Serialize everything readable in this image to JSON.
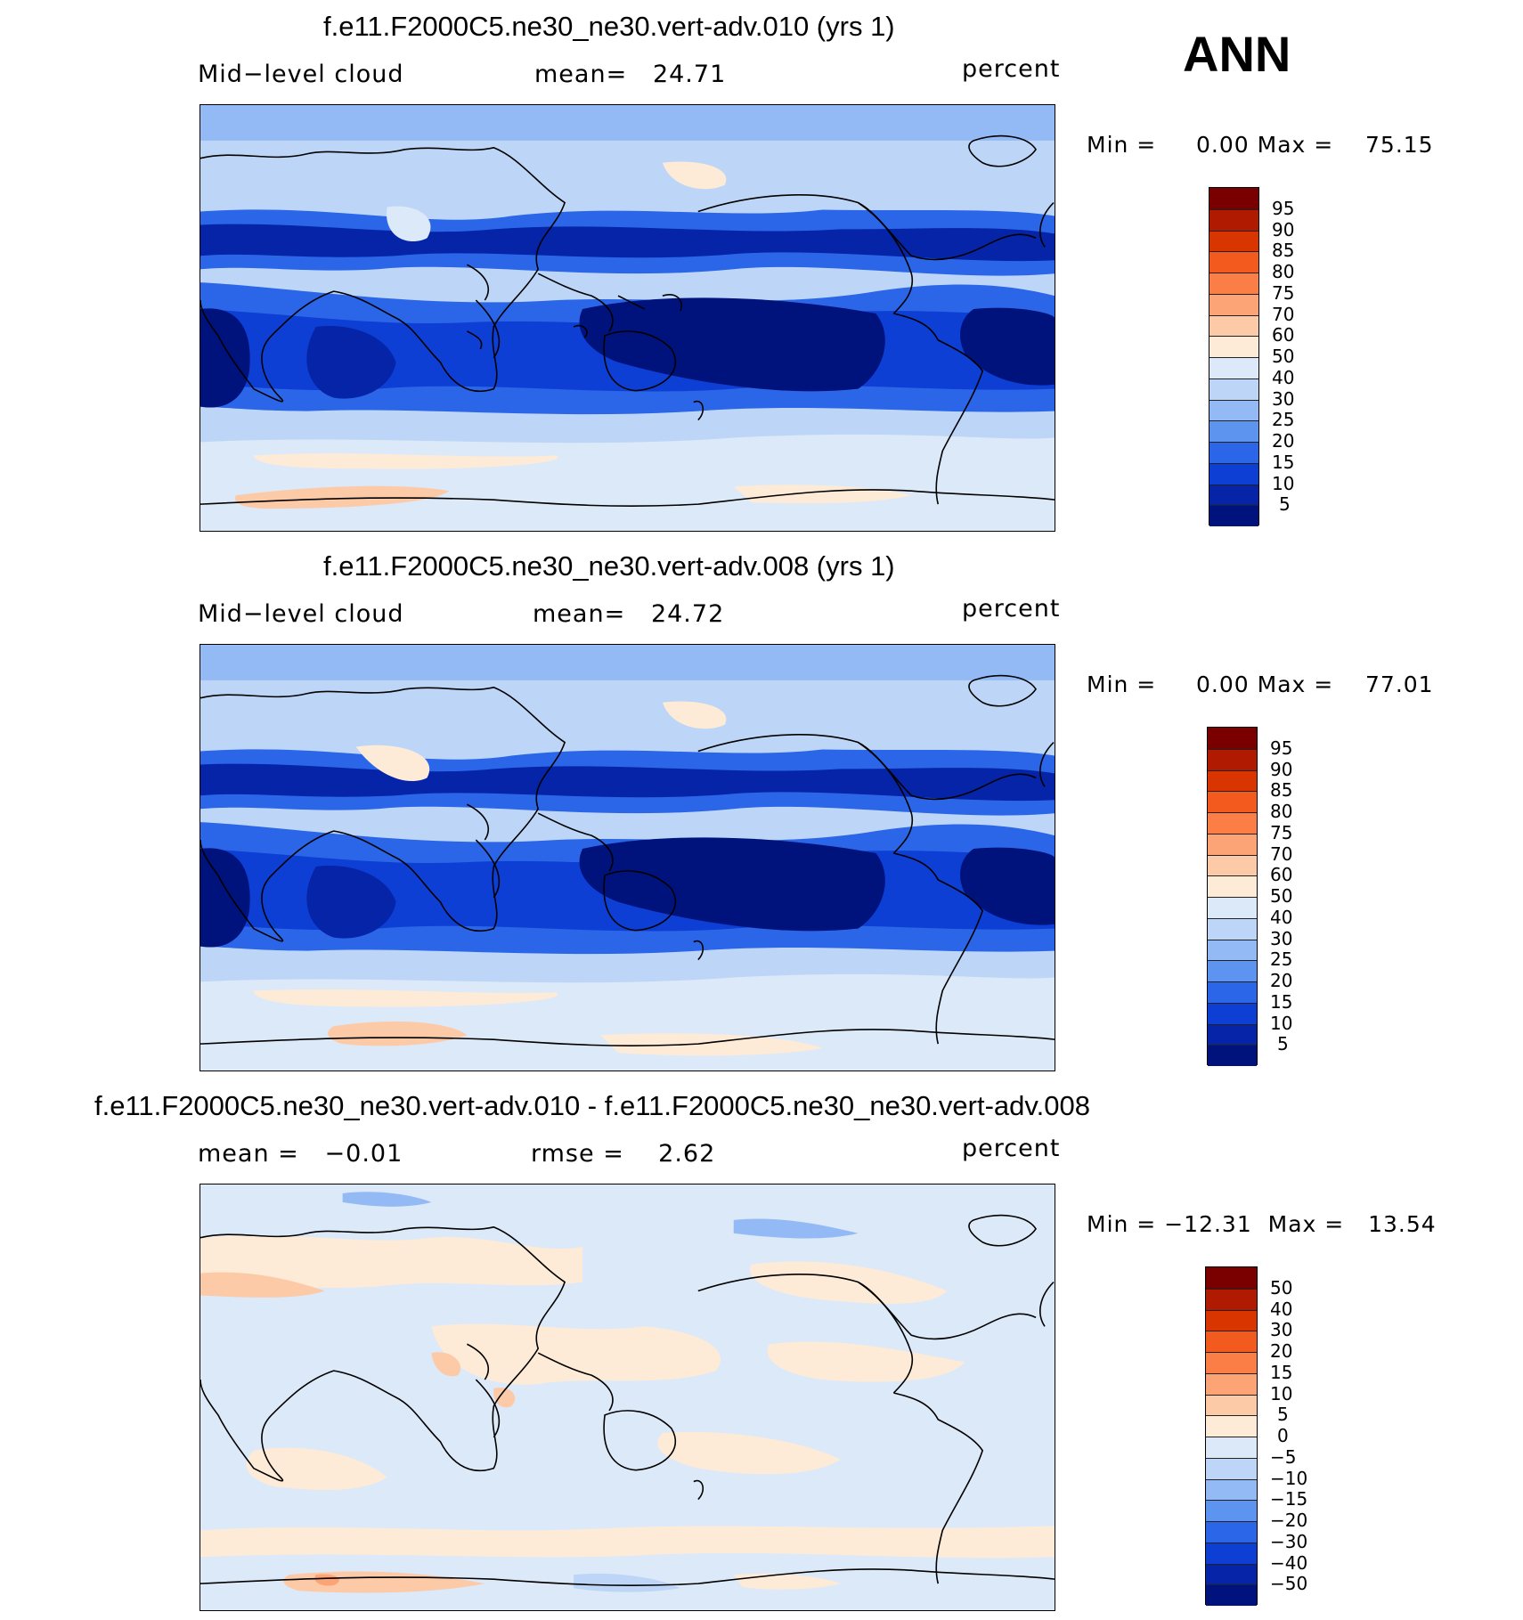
{
  "season": "ANN",
  "panels": [
    {
      "title": "f.e11.F2000C5.ne30_ne30.vert-adv.010 (yrs 1)",
      "left_label": "Mid−level cloud",
      "center_label": "mean=",
      "center_value": "24.71",
      "units": "percent",
      "min_label": "Min =",
      "min_value": "0.00",
      "max_label": "Max =",
      "max_value": "75.15",
      "scheme": "abs",
      "levels": [
        "95",
        "90",
        "85",
        "80",
        "75",
        "70",
        "60",
        "50",
        "40",
        "30",
        "25",
        "20",
        "15",
        "10",
        "5"
      ]
    },
    {
      "title": "f.e11.F2000C5.ne30_ne30.vert-adv.008 (yrs 1)",
      "left_label": "Mid−level cloud",
      "center_label": "mean=",
      "center_value": "24.72",
      "units": "percent",
      "min_label": "Min =",
      "min_value": "0.00",
      "max_label": "Max =",
      "max_value": "77.01",
      "scheme": "abs",
      "levels": [
        "95",
        "90",
        "85",
        "80",
        "75",
        "70",
        "60",
        "50",
        "40",
        "30",
        "25",
        "20",
        "15",
        "10",
        "5"
      ]
    },
    {
      "title": "f.e11.F2000C5.ne30_ne30.vert-adv.010 - f.e11.F2000C5.ne30_ne30.vert-adv.008",
      "left_label": "mean =",
      "left_value": "−0.01",
      "center_label": "rmse =",
      "center_value": "2.62",
      "units": "percent",
      "min_label": "Min =",
      "min_value": "−12.31",
      "max_label": "Max =",
      "max_value": "13.54",
      "scheme": "diff",
      "levels": [
        "50",
        "40",
        "30",
        "20",
        "15",
        "10",
        "5",
        "0",
        "−5",
        "−10",
        "−15",
        "−20",
        "−30",
        "−40",
        "−50"
      ]
    }
  ],
  "colors": {
    "abs": [
      "#7a0000",
      "#b01a00",
      "#d93500",
      "#f25a1e",
      "#fb7e46",
      "#fda476",
      "#fdcaa8",
      "#fdebd8",
      "#dce9f8",
      "#bdd6f7",
      "#93baf4",
      "#5c94ef",
      "#2c66e8",
      "#0d3fd4",
      "#0524a7",
      "#00137d"
    ],
    "diff": [
      "#7a0000",
      "#b01a00",
      "#d93500",
      "#f25a1e",
      "#fb7e46",
      "#fda476",
      "#fdcaa8",
      "#fdebd8",
      "#dce9f8",
      "#bdd6f7",
      "#93baf4",
      "#5c94ef",
      "#2c66e8",
      "#0d3fd4",
      "#0524a7",
      "#00137d"
    ]
  }
}
